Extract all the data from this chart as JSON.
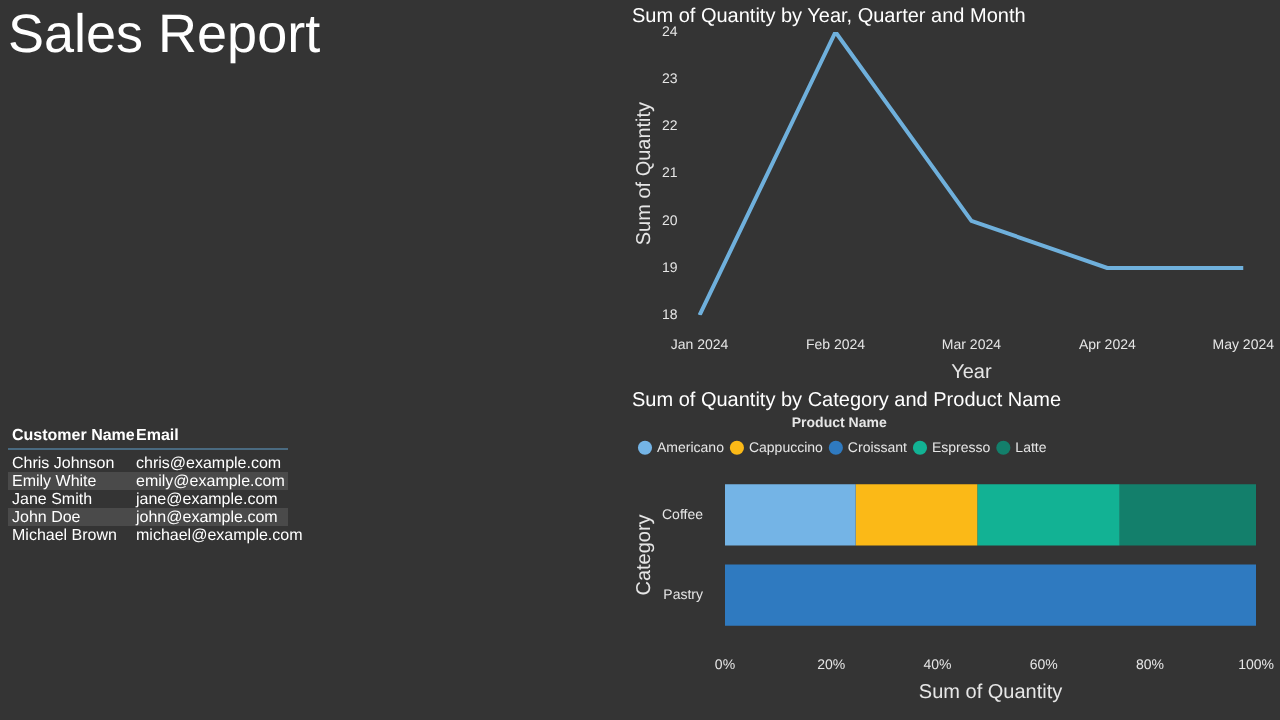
{
  "chart_data": [
    {
      "type": "other",
      "title": "Sales Report",
      "annotations": [
        "Customer Name",
        "Email",
        "Chris Johnson",
        "chris@example.com",
        "Emily White",
        "emily@example.com",
        "Jane Smith",
        "jane@example.com",
        "John Doe",
        "john@example.com",
        "Michael Brown",
        "michael@example.com"
      ]
    },
    {
      "type": "line",
      "title": "Sum of Quantity by Year, Quarter and Month",
      "categories": [
        "Jan 2024",
        "Feb 2024",
        "Mar 2024",
        "Apr 2024",
        "May 2024"
      ],
      "values": [
        18,
        24,
        20,
        19,
        19
      ],
      "color": "#6fb0dc",
      "xlabel": "Year",
      "ylabel": "Sum of Quantity",
      "ylim": [
        18,
        24
      ],
      "yticks": [
        18,
        19,
        20,
        21,
        22,
        23,
        24
      ]
    },
    {
      "type": "bar",
      "orientation": "horizontal",
      "stacked": true,
      "title": "Sum of Quantity by Category and Product Name",
      "legend_title": "Product Name",
      "legend": "top",
      "categories": [
        "Coffee",
        "Pastry"
      ],
      "xlabel": "Sum of Quantity",
      "ylabel": "Category",
      "xlim": [
        0,
        100
      ],
      "xticks": [
        {
          "value": 0,
          "label": "0%"
        },
        {
          "value": 20,
          "label": "20%"
        },
        {
          "value": 40,
          "label": "40%"
        },
        {
          "value": 60,
          "label": "60%"
        },
        {
          "value": 80,
          "label": "80%"
        },
        {
          "value": 100,
          "label": "100%"
        }
      ],
      "series": [
        {
          "name": "Americano",
          "color": "#74b4e6",
          "values": [
            24.6,
            null
          ]
        },
        {
          "name": "Cappuccino",
          "color": "#fbb917",
          "values": [
            22.9,
            null
          ]
        },
        {
          "name": "Croissant",
          "color": "#2f7ac0",
          "values": [
            null,
            100
          ]
        },
        {
          "name": "Espresso",
          "color": "#12b294",
          "values": [
            26.8,
            null
          ]
        },
        {
          "name": "Latte",
          "color": "#137f6b",
          "values": [
            25.7,
            null
          ]
        }
      ]
    }
  ]
}
